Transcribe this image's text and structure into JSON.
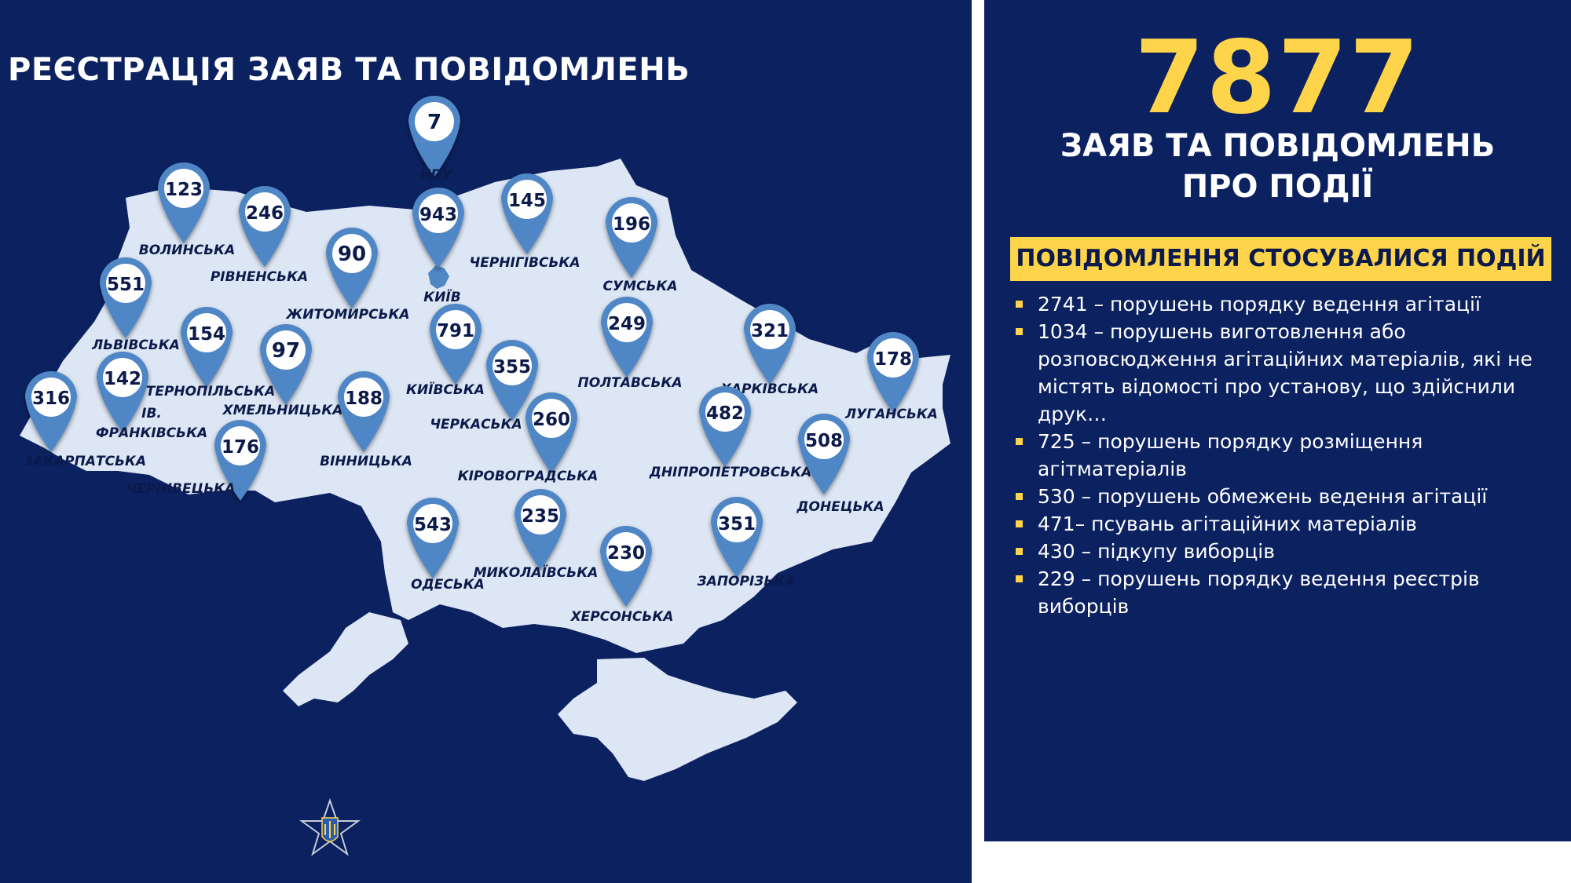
{
  "title": "РЕЄСТРАЦІЯ ЗАЯВ ТА ПОВІДОМЛЕНЬ",
  "colors": {
    "background": "#0b2160",
    "map_fill": "#dde6f4",
    "pin": "#4f86c6",
    "accent": "#fdd44a",
    "text_dark": "#0b1a4a"
  },
  "summary": {
    "total": "7877",
    "caption_line1": "ЗАЯВ ТА ПОВІДОМЛЕНЬ",
    "caption_line2": "ПРО ПОДІЇ",
    "banner": "ПОВІДОМЛЕННЯ СТОСУВАЛИСЯ ПОДІЙ",
    "items": [
      "2741 – порушень порядку ведення агітації",
      "1034 – порушень виготовлення або розповсюдження агітаційних матеріалів, які не містять відомості про установу, що здійснили друк…",
      "725 – порушень порядку розміщення агітматеріалів",
      "530 – порушень обмежень ведення агітації",
      "471– псувань агітаційних матеріалів",
      "430 – підкупу виборців",
      "229 – порушень порядку ведення реєстрів виборців"
    ]
  },
  "regions": [
    {
      "label": "НПУ",
      "value": "7"
    },
    {
      "label": "ВОЛИНСЬКА",
      "value": "123"
    },
    {
      "label": "РІВНЕНСЬКА",
      "value": "246"
    },
    {
      "label": "ЖИТОМИРСЬКА",
      "value": "90"
    },
    {
      "label": "КИЇВ",
      "value": "943"
    },
    {
      "label": "ЧЕРНІГІВСЬКА",
      "value": "145"
    },
    {
      "label": "СУМСЬКА",
      "value": "196"
    },
    {
      "label": "ЛЬВІВСЬКА",
      "value": "551"
    },
    {
      "label": "ТЕРНОПІЛЬСЬКА",
      "value": "154"
    },
    {
      "label": "ХМЕЛЬНИЦЬКА",
      "value": "97"
    },
    {
      "label": "КИЇВСЬКА",
      "value": "791"
    },
    {
      "label": "ПОЛТАВСЬКА",
      "value": "249"
    },
    {
      "label": "ХАРКІВСЬКА",
      "value": "321"
    },
    {
      "label": "ЛУГАНСЬКА",
      "value": "178"
    },
    {
      "label": "ЗАКАРПАТСЬКА",
      "value": "316"
    },
    {
      "label": "ІВ. ФРАНКІВСЬКА",
      "label_line1": "ІВ.",
      "label_line2": "ФРАНКІВСЬКА",
      "value": "142"
    },
    {
      "label": "ВІННИЦЬКА",
      "value": "188"
    },
    {
      "label": "ЧЕРКАСЬКА",
      "value": "355"
    },
    {
      "label": "КІРОВОГРАДСЬКА",
      "value": "260"
    },
    {
      "label": "ДНІПРОПЕТРОВСЬКА",
      "value": "482"
    },
    {
      "label": "ДОНЕЦЬКА",
      "value": "508"
    },
    {
      "label": "ЧЕРНІВЕЦЬКА",
      "value": "176"
    },
    {
      "label": "ОДЕСЬКА",
      "value": "543"
    },
    {
      "label": "МИКОЛАЇВСЬКА",
      "value": "235"
    },
    {
      "label": "ХЕРСОНСЬКА",
      "value": "230"
    },
    {
      "label": "ЗАПОРІЗЬКА",
      "value": "351"
    }
  ]
}
